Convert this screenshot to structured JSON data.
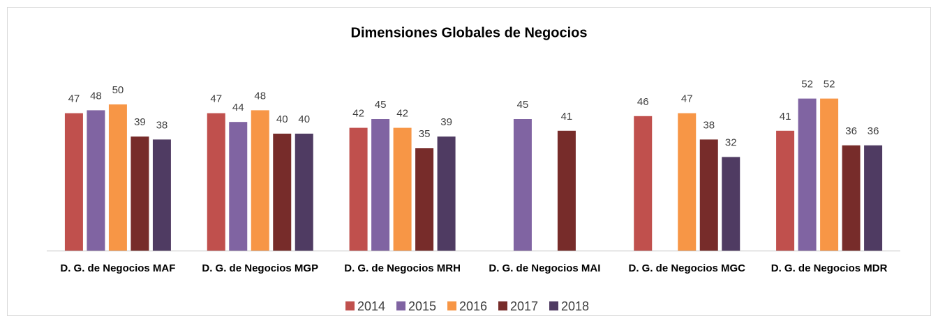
{
  "chart_data": {
    "type": "bar",
    "title": "Dimensiones Globales de Negocios",
    "categories": [
      "D. G. de Negocios MAF",
      "D. G. de Negocios MGP",
      "D. G. de Negocios MRH",
      "D. G. de Negocios MAI",
      "D. G. de Negocios MGC",
      "D. G. de Negocios MDR"
    ],
    "series": [
      {
        "name": "2014",
        "color": "#c0504d",
        "values": [
          47,
          47,
          42,
          null,
          46,
          41
        ]
      },
      {
        "name": "2015",
        "color": "#8064a2",
        "values": [
          48,
          44,
          45,
          45,
          null,
          52
        ]
      },
      {
        "name": "2016",
        "color": "#f79646",
        "values": [
          50,
          48,
          42,
          null,
          47,
          52
        ]
      },
      {
        "name": "2017",
        "color": "#772c2a",
        "values": [
          39,
          40,
          35,
          41,
          38,
          36
        ]
      },
      {
        "name": "2018",
        "color": "#4f3b62",
        "values": [
          38,
          40,
          39,
          null,
          32,
          36
        ]
      }
    ],
    "ylim": [
      0,
      60
    ],
    "legend": "bottom"
  }
}
